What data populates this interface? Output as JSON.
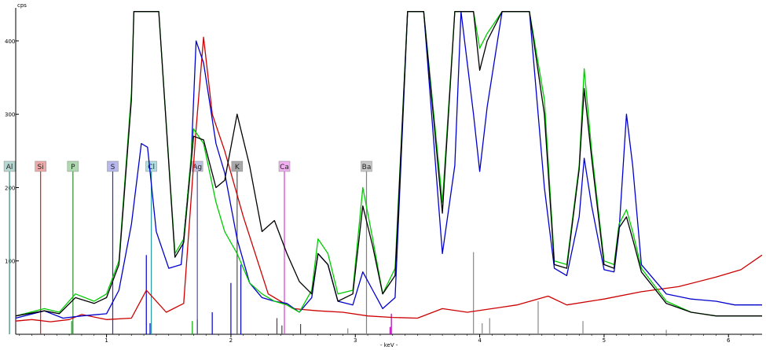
{
  "chart_data": {
    "type": "line",
    "ylabel": "cps",
    "xlabel": "- keV -",
    "xlim": [
      0.27,
      6.27
    ],
    "ylim": [
      0,
      445
    ],
    "x_ticks": [
      {
        "value": 1,
        "label": "1"
      },
      {
        "value": 2,
        "label": "2"
      },
      {
        "value": 3,
        "label": "3"
      },
      {
        "value": 4,
        "label": "4"
      },
      {
        "value": 5,
        "label": "5"
      },
      {
        "value": 6,
        "label": "6"
      }
    ],
    "y_ticks": [
      {
        "value": 100,
        "label": "100"
      },
      {
        "value": 200,
        "label": "200"
      },
      {
        "value": 300,
        "label": "300"
      },
      {
        "value": 400,
        "label": "400"
      }
    ],
    "grid": false,
    "series": [
      {
        "color": "#cc0000",
        "points": [
          [
            0.27,
            18
          ],
          [
            0.4,
            20
          ],
          [
            0.55,
            17
          ],
          [
            0.7,
            20
          ],
          [
            0.8,
            27
          ],
          [
            1.0,
            20
          ],
          [
            1.2,
            22
          ],
          [
            1.32,
            60
          ],
          [
            1.48,
            30
          ],
          [
            1.62,
            42
          ],
          [
            1.72,
            280
          ],
          [
            1.78,
            405
          ],
          [
            1.85,
            300
          ],
          [
            1.95,
            250
          ],
          [
            2.1,
            160
          ],
          [
            2.3,
            55
          ],
          [
            2.5,
            35
          ],
          [
            2.7,
            32
          ],
          [
            2.9,
            30
          ],
          [
            3.1,
            25
          ],
          [
            3.3,
            23
          ],
          [
            3.5,
            22
          ],
          [
            3.7,
            35
          ],
          [
            3.9,
            30
          ],
          [
            4.1,
            35
          ],
          [
            4.3,
            40
          ],
          [
            4.55,
            52
          ],
          [
            4.7,
            40
          ],
          [
            5.0,
            48
          ],
          [
            5.3,
            58
          ],
          [
            5.6,
            65
          ],
          [
            5.9,
            78
          ],
          [
            6.1,
            88
          ],
          [
            6.27,
            108
          ]
        ]
      },
      {
        "color": "#0000cc",
        "points": [
          [
            0.27,
            22
          ],
          [
            0.5,
            32
          ],
          [
            0.65,
            22
          ],
          [
            0.8,
            25
          ],
          [
            1.0,
            28
          ],
          [
            1.1,
            60
          ],
          [
            1.2,
            150
          ],
          [
            1.28,
            260
          ],
          [
            1.33,
            255
          ],
          [
            1.4,
            140
          ],
          [
            1.5,
            90
          ],
          [
            1.6,
            95
          ],
          [
            1.68,
            240
          ],
          [
            1.72,
            400
          ],
          [
            1.78,
            370
          ],
          [
            1.88,
            260
          ],
          [
            1.95,
            220
          ],
          [
            2.05,
            130
          ],
          [
            2.15,
            70
          ],
          [
            2.25,
            50
          ],
          [
            2.35,
            45
          ],
          [
            2.45,
            42
          ],
          [
            2.55,
            30
          ],
          [
            2.65,
            50
          ],
          [
            2.7,
            110
          ],
          [
            2.78,
            95
          ],
          [
            2.86,
            45
          ],
          [
            2.98,
            40
          ],
          [
            3.06,
            85
          ],
          [
            3.14,
            60
          ],
          [
            3.22,
            35
          ],
          [
            3.32,
            50
          ],
          [
            3.42,
            440
          ],
          [
            3.55,
            440
          ],
          [
            3.7,
            110
          ],
          [
            3.8,
            230
          ],
          [
            3.85,
            440
          ],
          [
            3.95,
            300
          ],
          [
            4.0,
            222
          ],
          [
            4.06,
            310
          ],
          [
            4.18,
            440
          ],
          [
            4.3,
            440
          ],
          [
            4.4,
            440
          ],
          [
            4.52,
            200
          ],
          [
            4.6,
            90
          ],
          [
            4.7,
            80
          ],
          [
            4.8,
            160
          ],
          [
            4.84,
            240
          ],
          [
            4.9,
            175
          ],
          [
            5.0,
            88
          ],
          [
            5.08,
            85
          ],
          [
            5.12,
            140
          ],
          [
            5.18,
            300
          ],
          [
            5.23,
            230
          ],
          [
            5.3,
            95
          ],
          [
            5.5,
            55
          ],
          [
            5.7,
            48
          ],
          [
            5.9,
            45
          ],
          [
            6.05,
            40
          ],
          [
            6.27,
            40
          ]
        ]
      },
      {
        "color": "#00cc00",
        "points": [
          [
            0.27,
            25
          ],
          [
            0.5,
            35
          ],
          [
            0.62,
            30
          ],
          [
            0.75,
            55
          ],
          [
            0.9,
            45
          ],
          [
            1.0,
            55
          ],
          [
            1.1,
            100
          ],
          [
            1.2,
            330
          ],
          [
            1.22,
            440
          ],
          [
            1.32,
            440
          ],
          [
            1.42,
            440
          ],
          [
            1.55,
            110
          ],
          [
            1.62,
            130
          ],
          [
            1.7,
            280
          ],
          [
            1.78,
            260
          ],
          [
            1.88,
            180
          ],
          [
            1.95,
            140
          ],
          [
            2.05,
            110
          ],
          [
            2.15,
            70
          ],
          [
            2.25,
            55
          ],
          [
            2.35,
            45
          ],
          [
            2.45,
            40
          ],
          [
            2.55,
            30
          ],
          [
            2.65,
            60
          ],
          [
            2.7,
            130
          ],
          [
            2.78,
            110
          ],
          [
            2.86,
            55
          ],
          [
            2.98,
            60
          ],
          [
            3.06,
            200
          ],
          [
            3.14,
            130
          ],
          [
            3.22,
            55
          ],
          [
            3.32,
            90
          ],
          [
            3.42,
            440
          ],
          [
            3.55,
            440
          ],
          [
            3.7,
            180
          ],
          [
            3.8,
            440
          ],
          [
            3.85,
            440
          ],
          [
            3.95,
            440
          ],
          [
            4.0,
            390
          ],
          [
            4.06,
            410
          ],
          [
            4.18,
            440
          ],
          [
            4.3,
            440
          ],
          [
            4.4,
            440
          ],
          [
            4.52,
            320
          ],
          [
            4.6,
            100
          ],
          [
            4.7,
            95
          ],
          [
            4.8,
            230
          ],
          [
            4.84,
            362
          ],
          [
            4.9,
            250
          ],
          [
            5.0,
            100
          ],
          [
            5.08,
            95
          ],
          [
            5.12,
            150
          ],
          [
            5.18,
            170
          ],
          [
            5.23,
            140
          ],
          [
            5.3,
            90
          ],
          [
            5.5,
            45
          ],
          [
            5.7,
            30
          ],
          [
            5.9,
            25
          ],
          [
            6.05,
            25
          ],
          [
            6.27,
            25
          ]
        ]
      },
      {
        "color": "#000000",
        "points": [
          [
            0.27,
            25
          ],
          [
            0.5,
            32
          ],
          [
            0.62,
            28
          ],
          [
            0.75,
            50
          ],
          [
            0.9,
            42
          ],
          [
            1.0,
            50
          ],
          [
            1.1,
            95
          ],
          [
            1.2,
            320
          ],
          [
            1.22,
            440
          ],
          [
            1.32,
            440
          ],
          [
            1.42,
            440
          ],
          [
            1.55,
            105
          ],
          [
            1.62,
            125
          ],
          [
            1.7,
            270
          ],
          [
            1.78,
            265
          ],
          [
            1.88,
            200
          ],
          [
            1.95,
            210
          ],
          [
            2.05,
            300
          ],
          [
            2.15,
            230
          ],
          [
            2.25,
            140
          ],
          [
            2.35,
            155
          ],
          [
            2.45,
            110
          ],
          [
            2.55,
            72
          ],
          [
            2.65,
            55
          ],
          [
            2.7,
            110
          ],
          [
            2.78,
            95
          ],
          [
            2.86,
            45
          ],
          [
            2.98,
            55
          ],
          [
            3.06,
            175
          ],
          [
            3.14,
            120
          ],
          [
            3.22,
            55
          ],
          [
            3.32,
            80
          ],
          [
            3.42,
            440
          ],
          [
            3.55,
            440
          ],
          [
            3.7,
            165
          ],
          [
            3.8,
            440
          ],
          [
            3.85,
            440
          ],
          [
            3.95,
            440
          ],
          [
            4.0,
            360
          ],
          [
            4.06,
            400
          ],
          [
            4.18,
            440
          ],
          [
            4.3,
            440
          ],
          [
            4.4,
            440
          ],
          [
            4.52,
            300
          ],
          [
            4.6,
            95
          ],
          [
            4.7,
            90
          ],
          [
            4.8,
            225
          ],
          [
            4.84,
            335
          ],
          [
            4.9,
            240
          ],
          [
            5.0,
            95
          ],
          [
            5.08,
            90
          ],
          [
            5.12,
            145
          ],
          [
            5.18,
            160
          ],
          [
            5.23,
            130
          ],
          [
            5.3,
            85
          ],
          [
            5.5,
            42
          ],
          [
            5.7,
            30
          ],
          [
            5.9,
            25
          ],
          [
            6.05,
            25
          ],
          [
            6.27,
            25
          ]
        ]
      }
    ],
    "element_markers": [
      {
        "label": "Al",
        "x": 0.22,
        "color": "#2e8b7a",
        "box": "#b7d7d3"
      },
      {
        "label": "Si",
        "x": 0.47,
        "color": "#cc2222",
        "box": "#f0a8a8"
      },
      {
        "label": "P",
        "x": 0.73,
        "color": "#2e8b2e",
        "box": "#b0d8b0"
      },
      {
        "label": "S",
        "x": 1.05,
        "color": "#2a2ad8",
        "box": "#b8b8f0"
      },
      {
        "label": "Cl",
        "x": 1.36,
        "color": "#2a9aa0",
        "box": "#b0dde0"
      },
      {
        "label": "Ag",
        "x": 1.73,
        "color": "#5050a0",
        "box": "#c0c0e0"
      },
      {
        "label": "K",
        "x": 2.05,
        "color": "#505050",
        "box": "#a8a8a8"
      },
      {
        "label": "Ca",
        "x": 2.43,
        "color": "#d83ad8",
        "box": "#f0b0f0"
      },
      {
        "label": "Ba",
        "x": 3.09,
        "color": "#808080",
        "box": "#c8c8c8"
      }
    ],
    "stick_lines": [
      {
        "x": 1.32,
        "y": 108,
        "color": "#0000cc"
      },
      {
        "x": 1.35,
        "y": 15,
        "color": "#0000cc"
      },
      {
        "x": 1.73,
        "y": 20,
        "color": "#0000cc"
      },
      {
        "x": 1.85,
        "y": 30,
        "color": "#0000cc"
      },
      {
        "x": 2.0,
        "y": 70,
        "color": "#0000cc"
      },
      {
        "x": 2.08,
        "y": 95,
        "color": "#0000cc"
      },
      {
        "x": 0.72,
        "y": 18,
        "color": "#00aa00"
      },
      {
        "x": 1.69,
        "y": 18,
        "color": "#00aa00"
      },
      {
        "x": 2.37,
        "y": 22,
        "color": "#444444"
      },
      {
        "x": 2.41,
        "y": 12,
        "color": "#444444"
      },
      {
        "x": 2.56,
        "y": 14,
        "color": "#444444"
      },
      {
        "x": 2.94,
        "y": 8,
        "color": "#888888"
      },
      {
        "x": 3.28,
        "y": 10,
        "color": "#aa00aa"
      },
      {
        "x": 3.29,
        "y": 28,
        "color": "#aa00aa"
      },
      {
        "x": 3.95,
        "y": 112,
        "color": "#888888"
      },
      {
        "x": 4.02,
        "y": 15,
        "color": "#888888"
      },
      {
        "x": 4.08,
        "y": 22,
        "color": "#888888"
      },
      {
        "x": 4.47,
        "y": 45,
        "color": "#888888"
      },
      {
        "x": 4.83,
        "y": 18,
        "color": "#888888"
      },
      {
        "x": 5.5,
        "y": 6,
        "color": "#888888"
      }
    ]
  }
}
